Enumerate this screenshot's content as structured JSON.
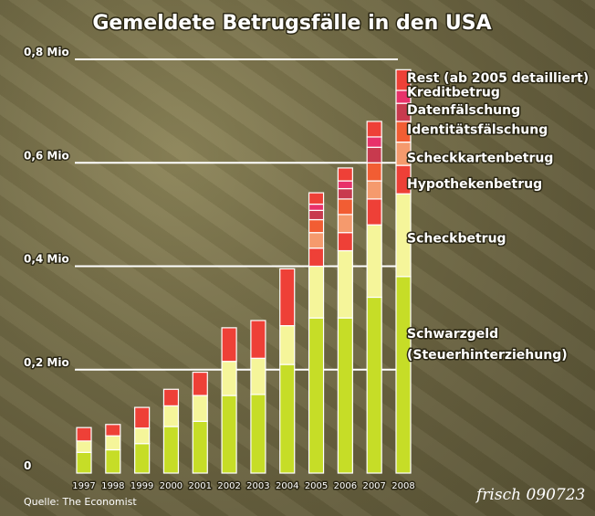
{
  "chart_data": {
    "type": "bar",
    "stacked": true,
    "title": "Gemeldete Betrugsfälle in den USA",
    "source": "Quelle: The Economist",
    "signature": "frisch 090723",
    "categories": [
      "1997",
      "1998",
      "1999",
      "2000",
      "2001",
      "2002",
      "2003",
      "2004",
      "2005",
      "2006",
      "2007",
      "2008"
    ],
    "yticks": [
      {
        "value": 0,
        "label": "0"
      },
      {
        "value": 0.2,
        "label": "0,2 Mio"
      },
      {
        "value": 0.4,
        "label": "0,4 Mio"
      },
      {
        "value": 0.6,
        "label": "0,6 Mio"
      },
      {
        "value": 0.8,
        "label": "0,8 Mio"
      }
    ],
    "ylim": [
      0,
      0.8
    ],
    "grid": true,
    "legend": "right",
    "series": [
      {
        "name": "Schwarzgeld (Steuerhinterziehung)",
        "color": "#c6dd27",
        "values": [
          0.04,
          0.045,
          0.057,
          0.09,
          0.1,
          0.15,
          0.152,
          0.21,
          0.3,
          0.3,
          0.34,
          0.38
        ]
      },
      {
        "name": "Scheckbetrug",
        "color": "#f5f59a",
        "values": [
          0.022,
          0.027,
          0.03,
          0.04,
          0.05,
          0.066,
          0.07,
          0.075,
          0.1,
          0.13,
          0.14,
          0.16
        ]
      },
      {
        "name": "Hypothekenbetrug",
        "color": "#ee4037",
        "values": [
          0.026,
          0.022,
          0.04,
          0.032,
          0.045,
          0.065,
          0.073,
          0.11,
          0.035,
          0.035,
          0.05,
          0.055
        ]
      },
      {
        "name": "Scheckkartenbetrug",
        "color": "#f59a6d",
        "values": [
          0,
          0,
          0,
          0,
          0,
          0,
          0,
          0,
          0.03,
          0.035,
          0.035,
          0.045
        ]
      },
      {
        "name": "Identitätsfälschung",
        "color": "#f25d33",
        "values": [
          0,
          0,
          0,
          0,
          0,
          0,
          0,
          0,
          0.025,
          0.03,
          0.035,
          0.04
        ]
      },
      {
        "name": "Datenfälschung",
        "color": "#c83a4e",
        "values": [
          0,
          0,
          0,
          0,
          0,
          0,
          0,
          0,
          0.018,
          0.02,
          0.03,
          0.035
        ]
      },
      {
        "name": "Kreditbetrug",
        "color": "#e8316a",
        "values": [
          0,
          0,
          0,
          0,
          0,
          0,
          0,
          0,
          0.012,
          0.015,
          0.02,
          0.025
        ]
      },
      {
        "name": "Rest (ab 2005 detailliert)",
        "color": "#ee4037",
        "values": [
          0,
          0,
          0,
          0,
          0,
          0,
          0,
          0,
          0.022,
          0.025,
          0.03,
          0.04
        ]
      }
    ],
    "legend_labels": [
      {
        "text": "Rest (ab 2005 detailliert)",
        "value": 0.765
      },
      {
        "text": "Kreditbetrug",
        "value": 0.737
      },
      {
        "text": "Datenfälschung",
        "value": 0.703
      },
      {
        "text": "Identitätsfälschung",
        "value": 0.665
      },
      {
        "text": "Scheckkartenbetrug",
        "value": 0.61
      },
      {
        "text": "Hypothekenbetrug",
        "value": 0.56
      },
      {
        "text": "Scheckbetrug",
        "value": 0.455
      },
      {
        "text": "Schwarzgeld",
        "value": 0.27
      },
      {
        "text": "(Steuerhinterziehung)",
        "value": 0.23
      }
    ]
  }
}
